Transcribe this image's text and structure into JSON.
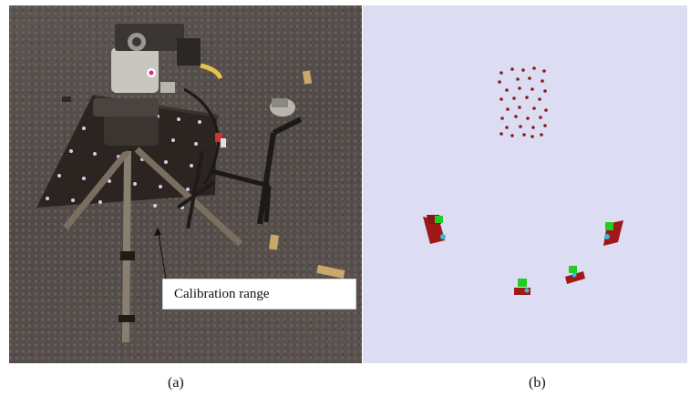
{
  "figure": {
    "panel_a": {
      "caption": "Calibration range",
      "label": "(a)"
    },
    "panel_b": {
      "label": "(b)",
      "colors": {
        "background": "#dcdcf3",
        "points": "#8b1a1a",
        "camera_body": "#a01818",
        "camera_top": "#22cc22",
        "camera_lens": "#33bbdd"
      }
    }
  }
}
